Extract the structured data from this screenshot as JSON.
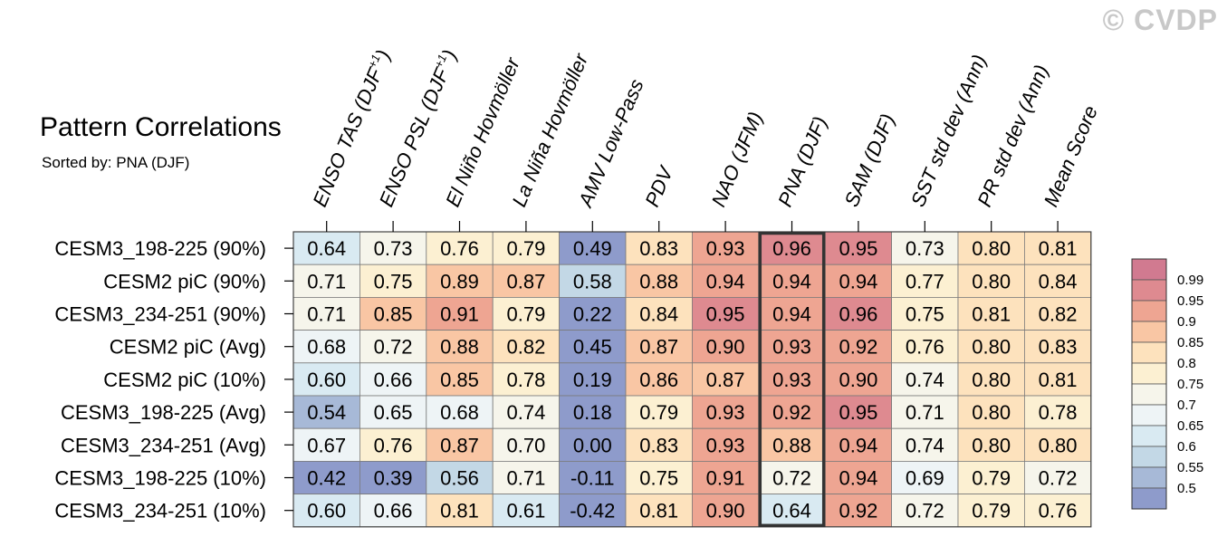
{
  "watermark": "© CVDP",
  "chart_data": {
    "type": "heatmap",
    "title": "Pattern Correlations",
    "subtitle": "Sorted by: PNA (DJF)",
    "columns": [
      "ENSO TAS (DJF+1)",
      "ENSO PSL (DJF+1)",
      "El Niño Hovmöller",
      "La Niña Hovmöller",
      "AMV Low-Pass",
      "PDV",
      "NAO (JFM)",
      "PNA (DJF)",
      "SAM (DJF)",
      "SST std dev (Ann)",
      "PR std dev (Ann)",
      "Mean Score"
    ],
    "rows": [
      "CESM3_198-225 (90%)",
      "CESM2 piC (90%)",
      "CESM3_234-251 (90%)",
      "CESM2 piC (Avg)",
      "CESM2 piC (10%)",
      "CESM3_198-225 (Avg)",
      "CESM3_234-251 (Avg)",
      "CESM3_198-225 (10%)",
      "CESM3_234-251 (10%)"
    ],
    "values": [
      [
        "0.64",
        "0.73",
        "0.76",
        "0.79",
        "0.49",
        "0.83",
        "0.93",
        "0.96",
        "0.95",
        "0.73",
        "0.80",
        "0.81"
      ],
      [
        "0.71",
        "0.75",
        "0.89",
        "0.87",
        "0.58",
        "0.88",
        "0.94",
        "0.94",
        "0.94",
        "0.77",
        "0.80",
        "0.84"
      ],
      [
        "0.71",
        "0.85",
        "0.91",
        "0.79",
        "0.22",
        "0.84",
        "0.95",
        "0.94",
        "0.96",
        "0.75",
        "0.81",
        "0.82"
      ],
      [
        "0.68",
        "0.72",
        "0.88",
        "0.82",
        "0.45",
        "0.87",
        "0.90",
        "0.93",
        "0.92",
        "0.76",
        "0.80",
        "0.83"
      ],
      [
        "0.60",
        "0.66",
        "0.85",
        "0.78",
        "0.19",
        "0.86",
        "0.87",
        "0.93",
        "0.90",
        "0.74",
        "0.80",
        "0.81"
      ],
      [
        "0.54",
        "0.65",
        "0.68",
        "0.74",
        "0.18",
        "0.79",
        "0.93",
        "0.92",
        "0.95",
        "0.71",
        "0.80",
        "0.78"
      ],
      [
        "0.67",
        "0.76",
        "0.87",
        "0.70",
        "0.00",
        "0.83",
        "0.93",
        "0.88",
        "0.94",
        "0.74",
        "0.80",
        "0.80"
      ],
      [
        "0.42",
        "0.39",
        "0.56",
        "0.71",
        "-0.11",
        "0.75",
        "0.91",
        "0.72",
        "0.94",
        "0.69",
        "0.79",
        "0.72"
      ],
      [
        "0.60",
        "0.66",
        "0.81",
        "0.61",
        "-0.42",
        "0.81",
        "0.90",
        "0.64",
        "0.92",
        "0.72",
        "0.79",
        "0.76"
      ]
    ],
    "highlighted_column": "PNA (DJF)",
    "colorbar": {
      "labels": [
        "0.99",
        "0.95",
        "0.9",
        "0.85",
        "0.8",
        "0.75",
        "0.7",
        "0.65",
        "0.6",
        "0.55",
        "0.5"
      ],
      "bounds": [
        0.5,
        0.55,
        0.6,
        0.65,
        0.7,
        0.75,
        0.8,
        0.85,
        0.9,
        0.95,
        0.99
      ],
      "colors": [
        "#8e9bcb",
        "#a7b9d7",
        "#c3d8e6",
        "#d9eaf2",
        "#eef4f6",
        "#f6f5eb",
        "#fcf0d2",
        "#fde2bd",
        "#f9c6a4",
        "#eea592",
        "#de8a90",
        "#d17a90"
      ]
    }
  }
}
